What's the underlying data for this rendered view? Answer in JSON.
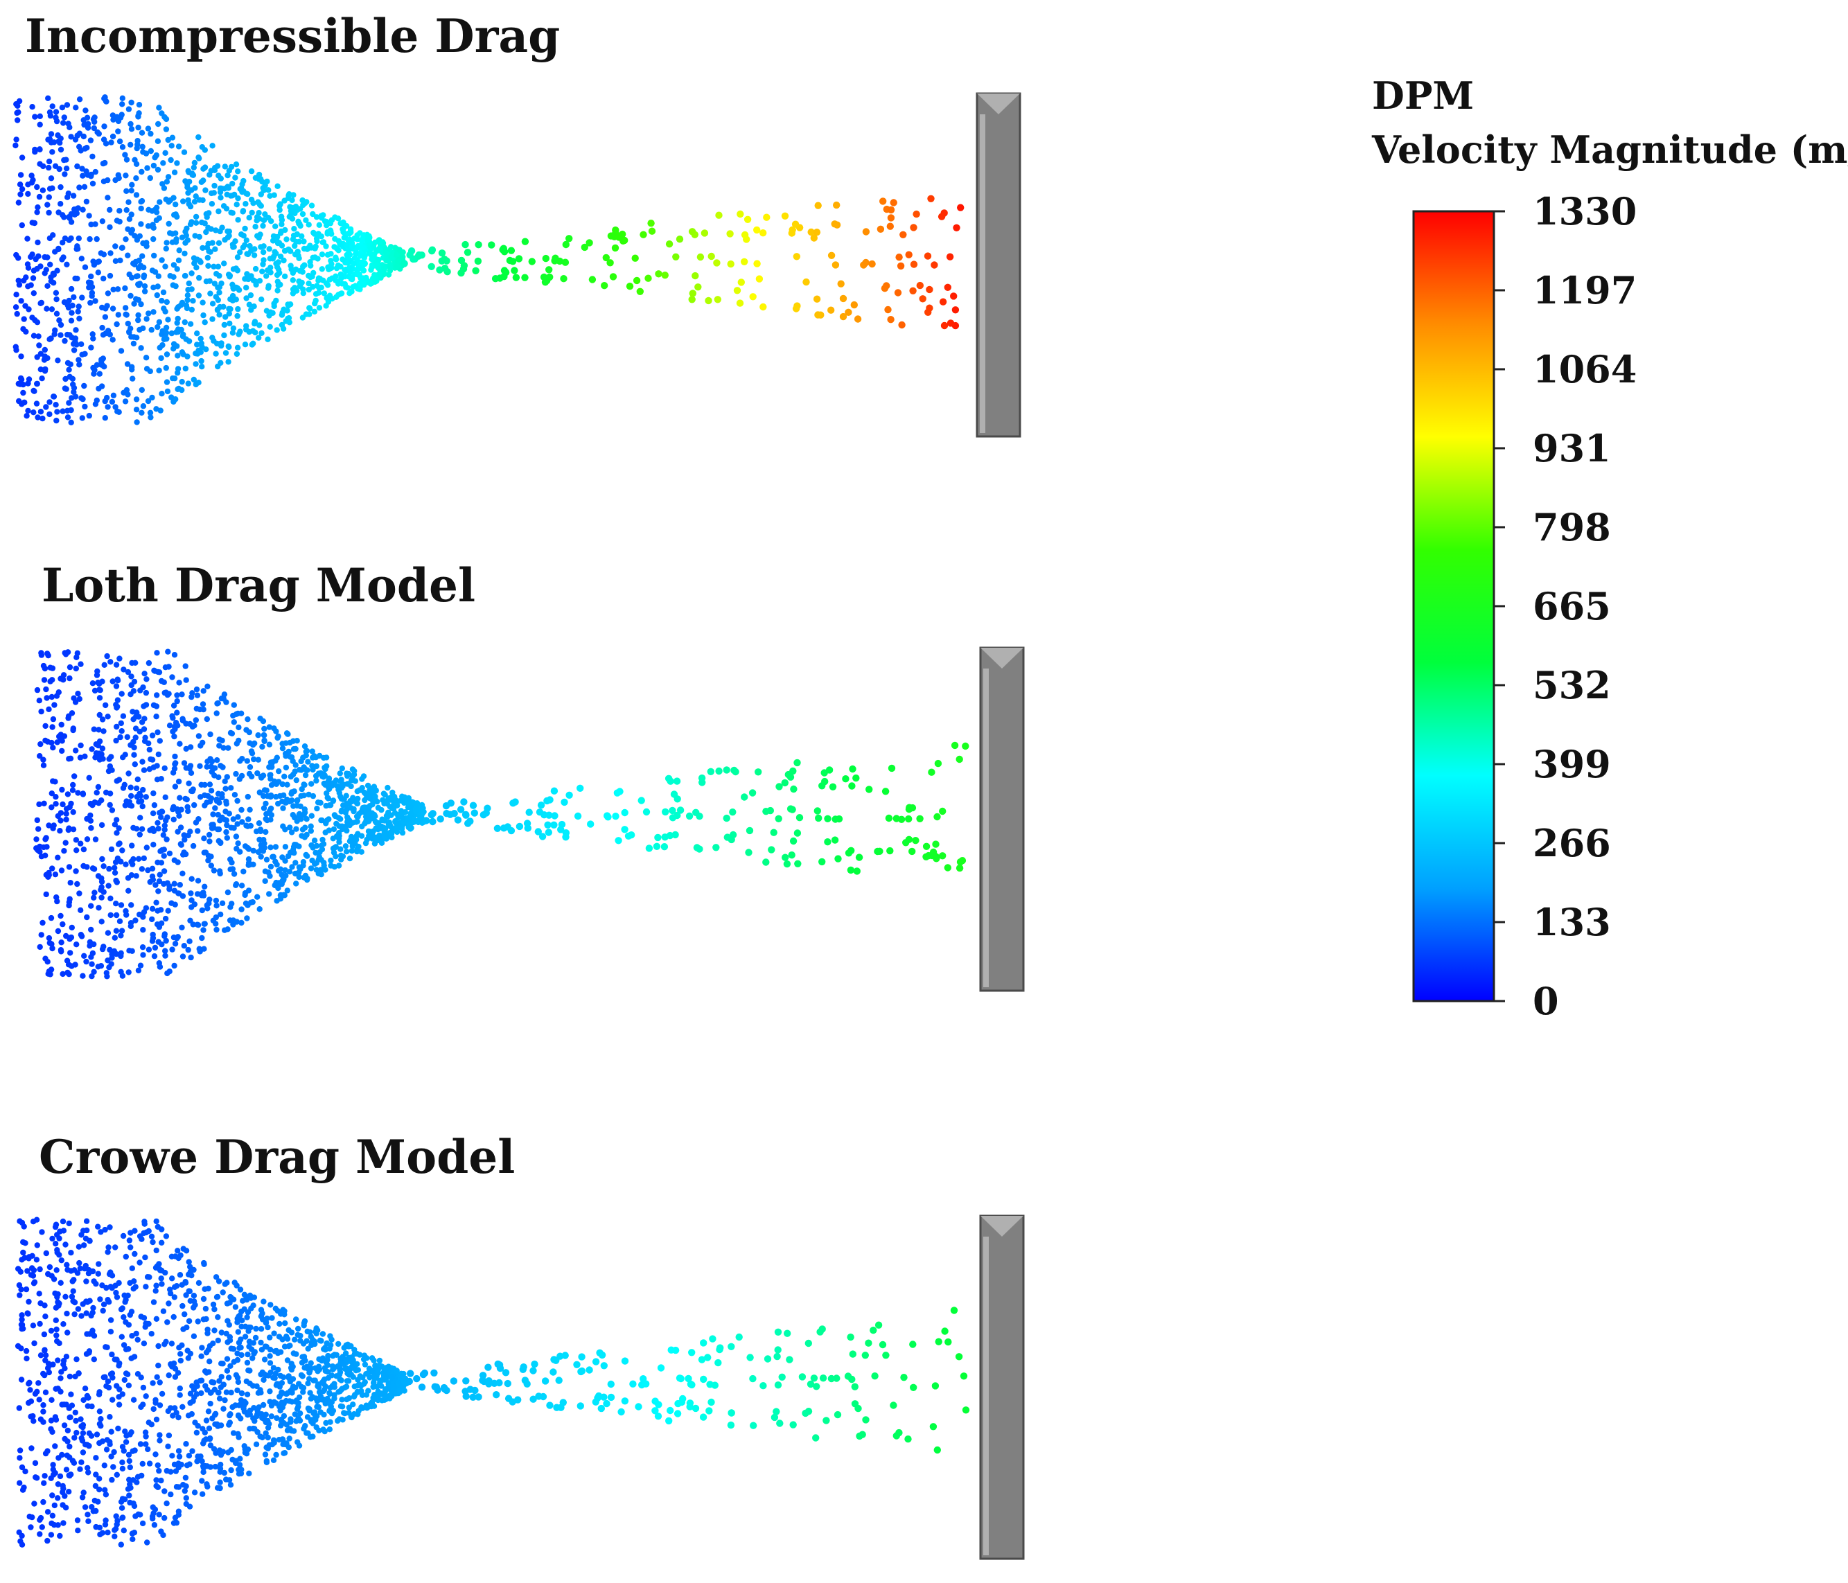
{
  "figure": {
    "panels": [
      {
        "title": "Incompressible Drag",
        "model": "incompressible",
        "peak_velocity": 1330
      },
      {
        "title": "Loth Drag Model",
        "model": "loth",
        "peak_velocity": 680
      },
      {
        "title": "Crowe Drag Model",
        "model": "crowe",
        "peak_velocity": 600
      }
    ]
  },
  "legend": {
    "title_line1": "DPM",
    "title_line2": "Velocity Magnitude (m/s)",
    "ticks": [
      "1330",
      "1197",
      "1064",
      "931",
      "798",
      "665",
      "532",
      "399",
      "266",
      "133",
      "0"
    ],
    "min": 0,
    "max": 1330,
    "colormap": [
      "#0000ff",
      "#00a0ff",
      "#00ffff",
      "#00ff3c",
      "#32ff00",
      "#ffff00",
      "#ff8c00",
      "#ff0000"
    ]
  },
  "colors": {
    "wall": "#808080",
    "wall_dark": "#4a4a4a",
    "wall_light": "#b0b0b0"
  }
}
